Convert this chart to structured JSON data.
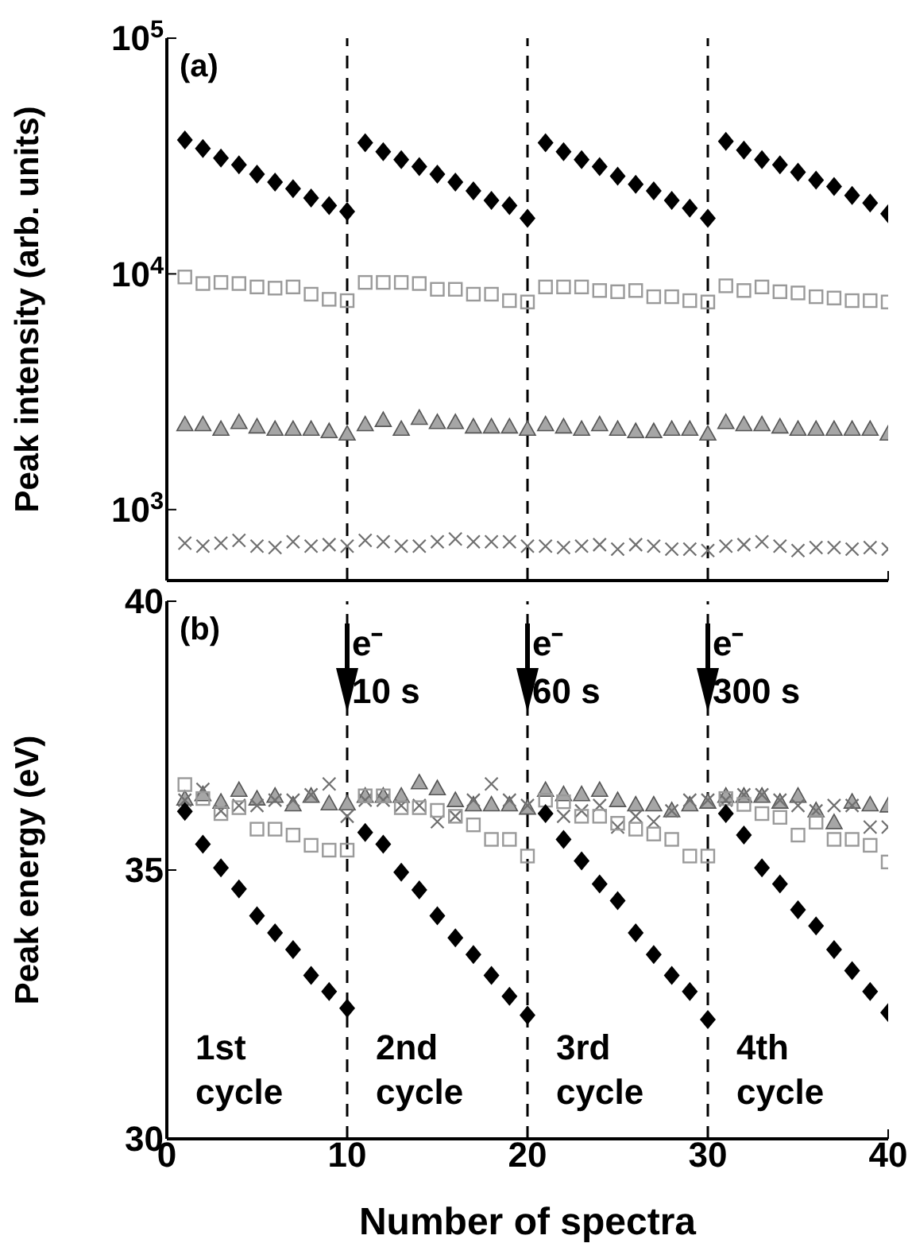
{
  "chart_data": [
    {
      "type": "scatter",
      "annotations": [
        "(a)"
      ],
      "ylabel": "Peak intensity (arb. units)",
      "log": "y",
      "xlim": [
        0,
        40
      ],
      "xticks": [
        0,
        10,
        20,
        30,
        40
      ],
      "ylim": [
        500,
        100000
      ],
      "yticks": [
        {
          "value": 1000,
          "label": "10$^{3}$"
        },
        {
          "value": 10000,
          "label": "10$^{4}$"
        },
        {
          "value": 100000,
          "label": "10$^{5}$"
        }
      ],
      "tick_labels": "y",
      "x": [
        1,
        2,
        3,
        4,
        5,
        6,
        7,
        8,
        9,
        10,
        11,
        12,
        13,
        14,
        15,
        16,
        17,
        18,
        19,
        20,
        21,
        22,
        23,
        24,
        25,
        26,
        27,
        28,
        29,
        30,
        31,
        32,
        33,
        34,
        35,
        36,
        37,
        38,
        39,
        40
      ],
      "ref_lines": [
        {
          "axis": "x",
          "value": 10,
          "line_style": "dashed"
        },
        {
          "axis": "x",
          "value": 20,
          "line_style": "dashed"
        },
        {
          "axis": "x",
          "value": 30,
          "line_style": "dashed"
        }
      ],
      "series": [
        {
          "color": "#000000",
          "marker": "diamond",
          "values": [
            37000,
            34000,
            31000,
            29000,
            26500,
            24500,
            23000,
            21000,
            19500,
            18400,
            36000,
            33000,
            30500,
            28500,
            26500,
            24500,
            22500,
            20500,
            19500,
            17200,
            36000,
            33000,
            30500,
            28500,
            26000,
            24000,
            22500,
            20500,
            19000,
            17200,
            36500,
            33500,
            30500,
            29000,
            27000,
            25000,
            23500,
            21500,
            20000,
            18000
          ]
        },
        {
          "color": "#9a9a9a",
          "marker": "square",
          "values": [
            9700,
            9100,
            9200,
            9100,
            8800,
            8700,
            8800,
            8200,
            7800,
            7700,
            9200,
            9200,
            9200,
            9100,
            8600,
            8600,
            8200,
            8200,
            7700,
            7600,
            8800,
            8800,
            8800,
            8500,
            8400,
            8500,
            8000,
            8000,
            7700,
            7600,
            8900,
            8500,
            8800,
            8400,
            8300,
            8000,
            7900,
            7700,
            7700,
            7600
          ]
        },
        {
          "color": "#a6a6a6",
          "marker": "triangle",
          "values": [
            2300,
            2300,
            2200,
            2350,
            2250,
            2200,
            2200,
            2200,
            2150,
            2100,
            2300,
            2400,
            2200,
            2450,
            2350,
            2350,
            2250,
            2250,
            2250,
            2200,
            2300,
            2250,
            2200,
            2300,
            2200,
            2150,
            2150,
            2200,
            2200,
            2100,
            2350,
            2300,
            2300,
            2250,
            2200,
            2200,
            2200,
            2200,
            2200,
            2100
          ]
        },
        {
          "color": "#707070",
          "marker": "cross",
          "values": [
            720,
            700,
            720,
            740,
            700,
            690,
            730,
            700,
            710,
            700,
            740,
            730,
            700,
            700,
            730,
            750,
            730,
            730,
            730,
            700,
            700,
            690,
            700,
            710,
            680,
            710,
            700,
            680,
            680,
            670,
            700,
            710,
            730,
            700,
            670,
            690,
            690,
            680,
            690,
            680
          ]
        }
      ]
    },
    {
      "type": "scatter",
      "annotations": [
        "(b)",
        "1st cycle",
        "2nd cycle",
        "3rd cycle",
        "4th cycle"
      ],
      "xlabel": "Number of spectra",
      "ylabel": "Peak energy (eV)",
      "xlim": [
        0,
        40
      ],
      "xticks": [
        0,
        10,
        20,
        30,
        40
      ],
      "ylim": [
        30,
        40
      ],
      "yticks": [
        30,
        35,
        40
      ],
      "x": [
        1,
        2,
        3,
        4,
        5,
        6,
        7,
        8,
        9,
        10,
        11,
        12,
        13,
        14,
        15,
        16,
        17,
        18,
        19,
        20,
        21,
        22,
        23,
        24,
        25,
        26,
        27,
        28,
        29,
        30,
        31,
        32,
        33,
        34,
        35,
        36,
        37,
        38,
        39,
        40
      ],
      "ref_lines": [
        {
          "axis": "x",
          "value": 10,
          "label": "e⁻ 10 s",
          "line_style": "dashed"
        },
        {
          "axis": "x",
          "value": 20,
          "label": "e⁻ 60 s",
          "line_style": "dashed"
        },
        {
          "axis": "x",
          "value": 30,
          "label": "e⁻ 300 s",
          "line_style": "dashed"
        }
      ],
      "series": [
        {
          "color": "#a6a6a6",
          "marker": "triangle",
          "values": [
            36.33,
            36.41,
            36.27,
            36.49,
            36.33,
            36.38,
            36.22,
            36.38,
            36.24,
            36.24,
            36.38,
            36.38,
            36.38,
            36.63,
            36.52,
            36.3,
            36.22,
            36.22,
            36.22,
            36.16,
            36.49,
            36.41,
            36.41,
            36.49,
            36.3,
            36.22,
            36.22,
            36.11,
            36.22,
            36.27,
            36.38,
            36.38,
            36.38,
            36.27,
            36.38,
            36.11,
            35.89,
            36.27,
            36.22,
            36.2
          ]
        },
        {
          "color": "#707070",
          "marker": "cross",
          "values": [
            36.3,
            36.5,
            36.1,
            36.2,
            36.2,
            36.3,
            36.3,
            36.4,
            36.6,
            36,
            36.3,
            36.3,
            36.2,
            36.2,
            35.9,
            36,
            36.3,
            36.6,
            36.3,
            36.2,
            null,
            36,
            36.1,
            36.2,
            35.8,
            36,
            35.9,
            36.1,
            36.3,
            36.3,
            36.3,
            36.4,
            36.4,
            36.3,
            36.2,
            36.1,
            36.2,
            36.2,
            35.8,
            35.8
          ]
        },
        {
          "color": "#9a9a9a",
          "marker": "square",
          "values": [
            36.59,
            36.33,
            36.05,
            36.16,
            35.76,
            35.76,
            35.65,
            35.46,
            35.37,
            35.37,
            36.38,
            36.38,
            36.16,
            36.16,
            36.11,
            36,
            35.84,
            35.57,
            35.57,
            35.26,
            36.3,
            36.27,
            36,
            36,
            35.87,
            35.76,
            35.67,
            35.57,
            35.26,
            35.26,
            36.33,
            36.22,
            36.05,
            35.98,
            35.65,
            35.89,
            35.57,
            35.57,
            35.46,
            35.15
          ]
        },
        {
          "color": "#000000",
          "marker": "diamond",
          "values": [
            36.09,
            35.48,
            35.04,
            34.65,
            34.15,
            33.83,
            33.52,
            33.04,
            32.74,
            32.43,
            35.7,
            35.48,
            34.96,
            34.63,
            34.15,
            33.74,
            33.43,
            33.04,
            32.65,
            32.3,
            36.05,
            35.57,
            35.17,
            34.74,
            34.43,
            33.83,
            33.43,
            33.04,
            32.74,
            32.22,
            36.05,
            35.65,
            35.04,
            34.74,
            34.26,
            33.96,
            33.52,
            33.13,
            32.74,
            32.35
          ]
        }
      ]
    }
  ]
}
